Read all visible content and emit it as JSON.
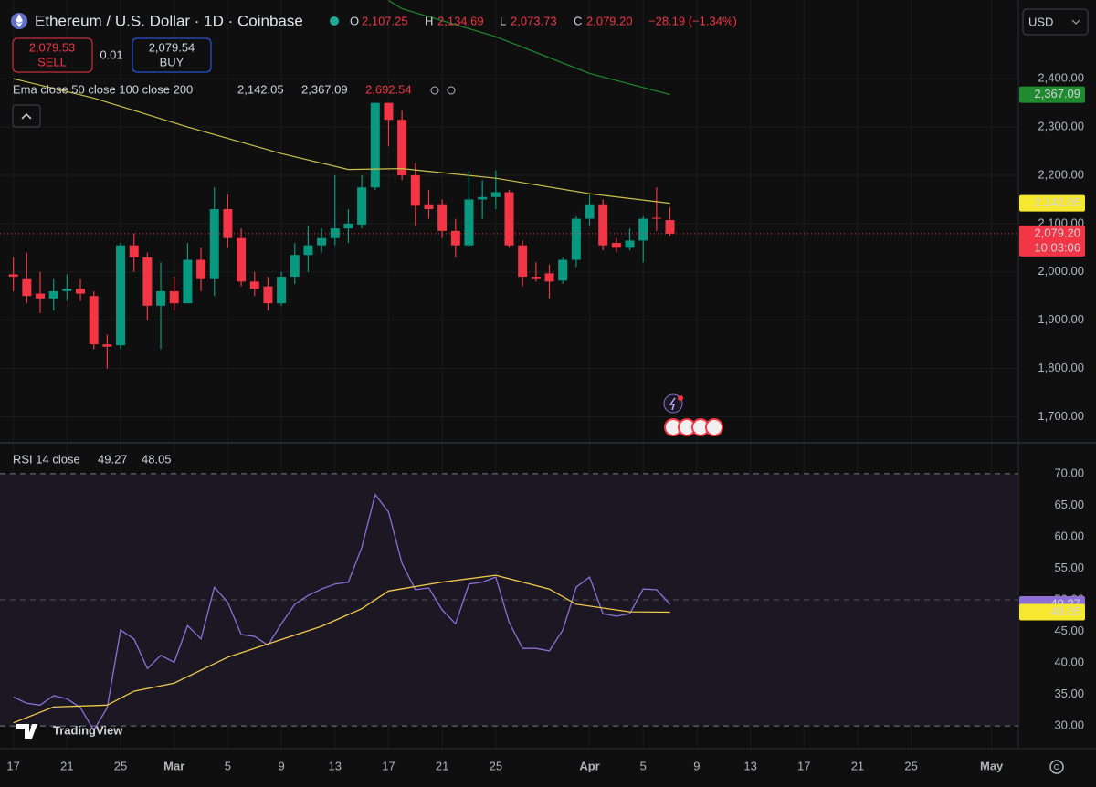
{
  "header": {
    "symbol": "Ethereum / U.S. Dollar · 1D · Coinbase",
    "o_label": "O",
    "open": "2,107.25",
    "h_label": "H",
    "high": "2,134.69",
    "l_label": "L",
    "low": "2,073.73",
    "c_label": "C",
    "close": "2,079.20",
    "change": "−28.19 (−1.34%)"
  },
  "trade": {
    "sell_price": "2,079.53",
    "sell": "SELL",
    "quantity": "0.01",
    "buy_price": "2,079.54",
    "buy": "BUY"
  },
  "currency": "USD",
  "ema_legend": {
    "label": "Ema close 50 close 100 close 200",
    "ema50": "2,142.05",
    "ema100": "2,367.09",
    "ema200": "2,692.54"
  },
  "rsi_legend": {
    "label": "RSI 14 close",
    "rsi": "49.27",
    "rsi_ma": "48.05"
  },
  "countdown": "10:03:06",
  "logo": "TradingView",
  "chart_data": [
    {
      "type": "candlestick",
      "x": [
        0,
        1,
        2,
        3,
        4,
        5,
        6,
        7,
        8,
        9,
        10,
        11,
        12,
        13,
        14,
        15,
        16,
        17,
        18,
        19,
        20,
        21,
        22,
        23,
        24,
        25,
        26,
        27,
        28,
        29,
        30,
        31,
        32,
        33,
        34,
        35,
        36,
        37,
        38,
        39,
        40,
        41,
        42,
        43,
        44,
        45,
        46,
        47,
        48,
        49
      ],
      "open": [
        1995,
        1985,
        1955,
        1945,
        1960,
        1965,
        1950,
        1850,
        1848,
        2055,
        2030,
        1930,
        1960,
        1935,
        2025,
        1985,
        2130,
        2070,
        1980,
        1970,
        1935,
        1990,
        2035,
        2055,
        2070,
        2090,
        2098,
        2175,
        2350,
        2315,
        2200,
        2140,
        2140,
        2085,
        2055,
        2150,
        2155,
        2165,
        2055,
        1990,
        1997,
        1982,
        2025,
        2110,
        2140,
        2060,
        2050,
        2065,
        2112,
        2107.25
      ],
      "high": [
        2030,
        2040,
        2000,
        1985,
        1995,
        1985,
        1960,
        1870,
        2060,
        2080,
        2040,
        2020,
        1990,
        2060,
        2050,
        2175,
        2160,
        2090,
        2000,
        1990,
        2000,
        2060,
        2095,
        2090,
        2200,
        2130,
        2200,
        2350,
        2350,
        2335,
        2225,
        2170,
        2150,
        2110,
        2210,
        2190,
        2210,
        2170,
        2065,
        2020,
        2015,
        2030,
        2115,
        2160,
        2150,
        2070,
        2090,
        2115,
        2175,
        2134.69
      ],
      "low": [
        1960,
        1935,
        1915,
        1920,
        1940,
        1940,
        1840,
        1800,
        1840,
        2000,
        1900,
        1840,
        1920,
        1935,
        1960,
        1950,
        2050,
        1970,
        1950,
        1920,
        1930,
        1975,
        2000,
        2040,
        2055,
        2060,
        2090,
        2170,
        2260,
        2190,
        2095,
        2110,
        2070,
        2030,
        2050,
        2110,
        2130,
        2050,
        1970,
        1980,
        1945,
        1975,
        2010,
        2095,
        2045,
        2040,
        2045,
        2020,
        2085,
        2073.73
      ],
      "close": [
        1990,
        1950,
        1945,
        1960,
        1965,
        1955,
        1850,
        1845,
        2055,
        2030,
        1930,
        1960,
        1935,
        2025,
        1985,
        2130,
        2070,
        1980,
        1965,
        1935,
        1990,
        2035,
        2055,
        2070,
        2090,
        2100,
        2175,
        2350,
        2315,
        2200,
        2137,
        2130,
        2085,
        2055,
        2150,
        2155,
        2165,
        2055,
        1990,
        1985,
        1980,
        2025,
        2110,
        2140,
        2055,
        2050,
        2065,
        2110,
        2110,
        2079.2
      ],
      "up_color": "#089981",
      "down_color": "#f23645",
      "xlim": [
        -1,
        75
      ],
      "xticks": [
        {
          "value": 0,
          "label": "17"
        },
        {
          "value": 4,
          "label": "21"
        },
        {
          "value": 8,
          "label": "25"
        },
        {
          "value": 12,
          "label": "Mar"
        },
        {
          "value": 16,
          "label": "5"
        },
        {
          "value": 20,
          "label": "9"
        },
        {
          "value": 24,
          "label": "13"
        },
        {
          "value": 28,
          "label": "17"
        },
        {
          "value": 32,
          "label": "21"
        },
        {
          "value": 36,
          "label": "25"
        },
        {
          "value": 43,
          "label": "Apr"
        },
        {
          "value": 47,
          "label": "5"
        },
        {
          "value": 51,
          "label": "9"
        },
        {
          "value": 55,
          "label": "13"
        },
        {
          "value": 59,
          "label": "17"
        },
        {
          "value": 63,
          "label": "21"
        },
        {
          "value": 67,
          "label": "25"
        },
        {
          "value": 73,
          "label": "May"
        }
      ],
      "ylim": [
        1646,
        2563
      ],
      "yticks": [
        {
          "value": 1700,
          "label": "1,700.00"
        },
        {
          "value": 1800,
          "label": "1,800.00"
        },
        {
          "value": 1900,
          "label": "1,900.00"
        },
        {
          "value": 2000,
          "label": "2,000.00"
        },
        {
          "value": 2100,
          "label": "2,100.00"
        },
        {
          "value": 2200,
          "label": "2,200.00"
        },
        {
          "value": 2300,
          "label": "2,300.00"
        },
        {
          "value": 2400,
          "label": "2,400.00"
        }
      ],
      "grid": true,
      "lines": [
        {
          "color": "#c9bf4a",
          "x": [
            0,
            6,
            13,
            20,
            25,
            29,
            36,
            43,
            49
          ],
          "values": [
            2400,
            2360,
            2300,
            2245,
            2212,
            2214,
            2194,
            2162,
            2142.05
          ]
        },
        {
          "color": "#1f8a2e",
          "x": [
            28,
            29,
            36,
            43,
            49
          ],
          "values": [
            2562,
            2545,
            2487,
            2411,
            2367.09
          ]
        }
      ],
      "price_tags": [
        {
          "value": 2367.09,
          "label": "2,367.09",
          "color": "#1f8a2e",
          "text_color": "#ffffff"
        },
        {
          "value": 2142.05,
          "label": "2,142.05",
          "color": "#f5e82e",
          "text_color": "#000000"
        },
        {
          "value": 2079.2,
          "label": "2,079.20",
          "color": "#f23645",
          "text_color": "#ffffff",
          "dotted_line": true
        }
      ]
    },
    {
      "type": "line",
      "xlim": [
        -1,
        75
      ],
      "ylim": [
        26.4,
        74.9
      ],
      "yticks": [
        {
          "value": 30,
          "label": "30.00"
        },
        {
          "value": 35,
          "label": "35.00"
        },
        {
          "value": 40,
          "label": "40.00"
        },
        {
          "value": 45,
          "label": "45.00"
        },
        {
          "value": 50,
          "label": "50.00"
        },
        {
          "value": 55,
          "label": "55.00"
        },
        {
          "value": 60,
          "label": "60.00"
        },
        {
          "value": 65,
          "label": "65.00"
        },
        {
          "value": 70,
          "label": "70.00"
        }
      ],
      "band": [
        30,
        70
      ],
      "midline": 50,
      "band_color": "#1b1824",
      "series": [
        {
          "color": "#8e6fd6",
          "x": [
            0,
            1,
            2,
            3,
            4,
            5,
            6,
            7,
            8,
            9,
            10,
            11,
            12,
            13,
            14,
            15,
            16,
            17,
            18,
            19,
            20,
            21,
            22,
            23,
            24,
            25,
            26,
            27,
            28,
            29,
            30,
            31,
            32,
            33,
            34,
            35,
            36,
            37,
            38,
            39,
            40,
            41,
            42,
            43,
            44,
            45,
            46,
            47,
            48,
            49
          ],
          "values": [
            34.6,
            33.6,
            33.3,
            34.8,
            34.3,
            32.9,
            29.3,
            32.9,
            45.2,
            43.8,
            39.1,
            41.2,
            40.1,
            45.9,
            43.8,
            52.0,
            49.6,
            44.5,
            44.2,
            42.8,
            46.2,
            49.3,
            50.7,
            51.7,
            52.5,
            52.8,
            58.3,
            66.7,
            63.9,
            55.8,
            51.6,
            51.9,
            48.4,
            46.2,
            52.5,
            52.8,
            53.6,
            46.4,
            42.3,
            42.3,
            41.9,
            45.2,
            52.0,
            53.6,
            47.8,
            47.4,
            47.8,
            51.7,
            51.6,
            49.27
          ]
        },
        {
          "color": "#f2c94c",
          "x": [
            0,
            3,
            7,
            9,
            12,
            16,
            19,
            23,
            26,
            28,
            32,
            36,
            40,
            42,
            46,
            49
          ],
          "values": [
            30.5,
            33.0,
            33.3,
            35.5,
            36.8,
            40.9,
            43.0,
            45.8,
            48.6,
            51.4,
            52.8,
            53.9,
            51.7,
            49.3,
            48.1,
            48.05
          ]
        }
      ],
      "price_tags": [
        {
          "value": 49.27,
          "label": "49.27",
          "color": "#8e6fd6",
          "text_color": "#ffffff"
        },
        {
          "value": 48.05,
          "label": "48.05",
          "color": "#f5e82e",
          "text_color": "#000000"
        }
      ]
    }
  ]
}
